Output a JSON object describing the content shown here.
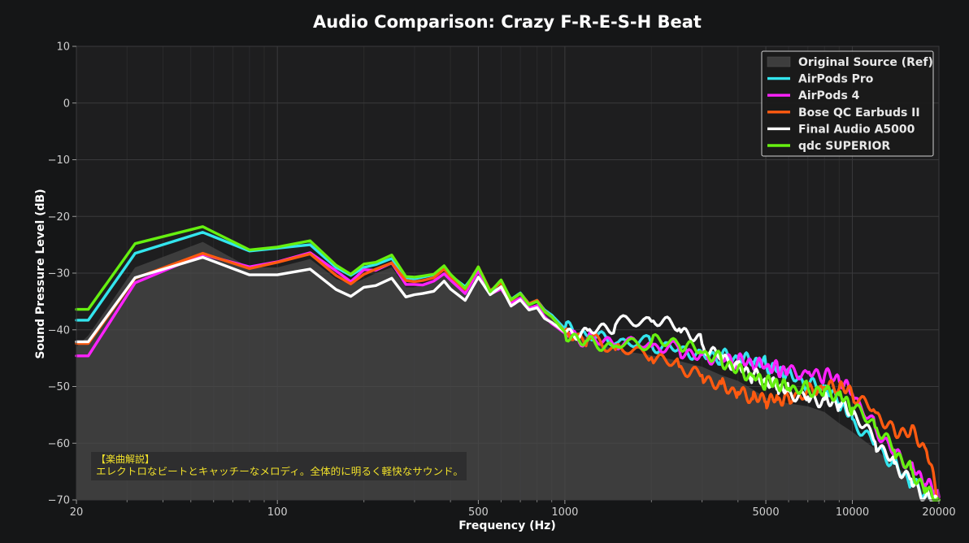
{
  "chart_data": {
    "type": "line",
    "title": "Audio Comparison: Crazy F-R-E-S-H Beat",
    "xlabel": "Frequency (Hz)",
    "ylabel": "Sound Pressure Level (dB)",
    "x_scale": "log",
    "xlim": [
      20,
      20000
    ],
    "ylim": [
      -70,
      10
    ],
    "x_ticks": [
      20,
      100,
      500,
      1000,
      5000,
      10000,
      20000
    ],
    "x_tick_labels": [
      "20",
      "100",
      "500",
      "1000",
      "5000",
      "10000",
      "20000"
    ],
    "y_ticks": [
      10,
      0,
      -10,
      -20,
      -30,
      -40,
      -50,
      -60,
      -70
    ],
    "y_tick_labels": [
      "10",
      "0",
      "−10",
      "−20",
      "−30",
      "−40",
      "−50",
      "−60",
      "−70"
    ],
    "grid": true,
    "legend_position": "top-right",
    "x": [
      20,
      22,
      32,
      55,
      80,
      100,
      130,
      160,
      180,
      200,
      220,
      250,
      280,
      300,
      320,
      350,
      380,
      400,
      450,
      500,
      550,
      600,
      650,
      700,
      750,
      800,
      850,
      900,
      1000,
      1200,
      1500,
      2000,
      2500,
      3000,
      3500,
      4000,
      4500,
      5000,
      5500,
      6000,
      7000,
      8000,
      9000,
      10000,
      12000,
      14000,
      16000,
      18000,
      20000
    ],
    "reference": {
      "name": "Original Source (Ref)",
      "color": "#4a4a4a",
      "values": [
        -43,
        -41,
        -29,
        -24.5,
        -29,
        -29,
        -27.5,
        -31,
        -32,
        -31,
        -30,
        -29,
        -32.5,
        -32.5,
        -32,
        -31.5,
        -30,
        -31,
        -33,
        -30,
        -34,
        -32,
        -35,
        -34,
        -36,
        -35.5,
        -37,
        -37.5,
        -40,
        -41.5,
        -43.5,
        -44.5,
        -45.5,
        -46.5,
        -48,
        -49,
        -50.5,
        -52,
        -52.5,
        -53,
        -53.5,
        -54.5,
        -56.5,
        -58,
        -61,
        -64,
        -66,
        -69,
        -70
      ]
    },
    "series": [
      {
        "name": "AirPods Pro",
        "color": "#33e5ee",
        "values": [
          -38.3,
          -38.3,
          -26.5,
          -22.8,
          -26.1,
          -25.6,
          -25,
          -29,
          -30.4,
          -29,
          -28.5,
          -27.4,
          -30.8,
          -31,
          -30.7,
          -30.3,
          -28.9,
          -30.4,
          -32.4,
          -29.3,
          -33.5,
          -31.5,
          -34.6,
          -33.5,
          -35.4,
          -34.8,
          -36.5,
          -37.4,
          -39.8,
          -41.2,
          -42.4,
          -42.5,
          -43.2,
          -44.2,
          -44.7,
          -45.3,
          -45.7,
          -46.2,
          -46.8,
          -47.5,
          -49.7,
          -50.5,
          -53,
          -55.7,
          -60,
          -63.6,
          -66.9,
          -69.4,
          -70
        ]
      },
      {
        "name": "AirPods 4",
        "color": "#ff22ff",
        "values": [
          -44.6,
          -44.6,
          -31.7,
          -26.7,
          -28.9,
          -28,
          -26.4,
          -29.6,
          -31.5,
          -29.4,
          -29.5,
          -28.2,
          -32,
          -32,
          -32.1,
          -31.4,
          -30.1,
          -31.2,
          -33.6,
          -29.6,
          -33.7,
          -32.8,
          -35.3,
          -34.4,
          -36.2,
          -35.7,
          -37.7,
          -38.9,
          -40.6,
          -41.9,
          -42.6,
          -42.9,
          -43.4,
          -44.4,
          -45,
          -45.6,
          -46.3,
          -46.5,
          -46.8,
          -46.9,
          -47.6,
          -48.1,
          -49.1,
          -51.3,
          -57.2,
          -61.2,
          -64,
          -67.2,
          -69.5
        ]
      },
      {
        "name": "Bose QC Earbuds II",
        "color": "#ff5a10",
        "values": [
          -42.4,
          -42.4,
          -30.9,
          -26.5,
          -29.2,
          -28.1,
          -26.6,
          -30.4,
          -31.9,
          -30.2,
          -29.3,
          -28.2,
          -31.3,
          -31.5,
          -31.3,
          -30.8,
          -29.3,
          -30.6,
          -32.9,
          -28.9,
          -33.1,
          -31.7,
          -34.8,
          -33.6,
          -35.4,
          -34.8,
          -36.7,
          -37.7,
          -40.3,
          -41.5,
          -43.5,
          -44.9,
          -46.5,
          -48,
          -49.5,
          -51,
          -52.2,
          -52.7,
          -52.3,
          -51.8,
          -50.6,
          -50.1,
          -50.3,
          -51.5,
          -54.5,
          -57.8,
          -57.5,
          -61,
          -70
        ]
      },
      {
        "name": "Final Audio A5000",
        "color": "#ffffff",
        "values": [
          -42.1,
          -42.1,
          -30.8,
          -27.2,
          -30.3,
          -30.3,
          -29.3,
          -32.9,
          -34.1,
          -32.5,
          -32.2,
          -30.9,
          -34.2,
          -33.8,
          -33.6,
          -33.2,
          -31.4,
          -32.8,
          -34.8,
          -30.7,
          -33.8,
          -32.4,
          -35.8,
          -34.7,
          -36.5,
          -36.1,
          -38,
          -38.7,
          -40.4,
          -40.1,
          -39.1,
          -38.5,
          -39.8,
          -42.5,
          -44.5,
          -46.2,
          -48,
          -49.5,
          -50.2,
          -50.8,
          -51.8,
          -52.3,
          -53.2,
          -54.9,
          -59.8,
          -63.5,
          -66.3,
          -69.4,
          -70
        ]
      },
      {
        "name": "qdc SUPERIOR",
        "color": "#66f010",
        "values": [
          -36.4,
          -36.4,
          -24.8,
          -21.8,
          -25.9,
          -25.4,
          -24.3,
          -28.6,
          -30.2,
          -28.4,
          -28.1,
          -26.8,
          -30.6,
          -30.7,
          -30.5,
          -30.2,
          -28.7,
          -30.2,
          -32.7,
          -28.9,
          -33.3,
          -31.2,
          -34.7,
          -33.6,
          -35.6,
          -35,
          -36.8,
          -37.7,
          -40.4,
          -41.9,
          -42.8,
          -42.2,
          -42.8,
          -44,
          -45.2,
          -46.7,
          -48.2,
          -49.4,
          -49.9,
          -50.3,
          -50.3,
          -50.5,
          -51.5,
          -53.8,
          -57.2,
          -61.3,
          -64.6,
          -67.9,
          -70
        ]
      }
    ],
    "annotation": {
      "title": "【楽曲解説】",
      "text": "エレクトロなビートとキャッチーなメロディ。全体的に明るく軽快なサウンド。"
    }
  }
}
